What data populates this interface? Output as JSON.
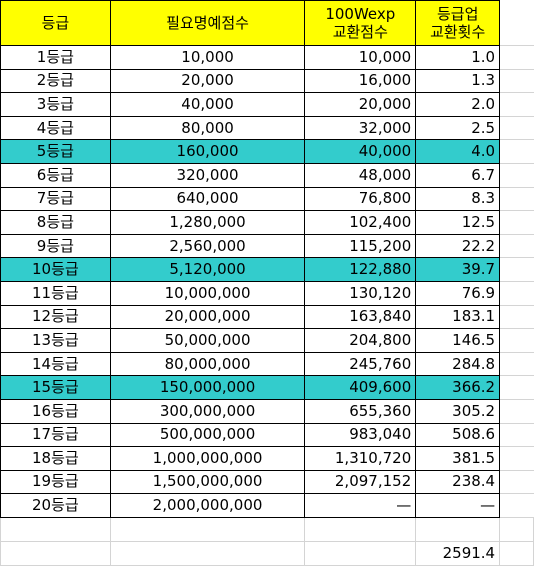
{
  "headers": {
    "grade": "등급",
    "required_points": "필요명예점수",
    "exchange_line1": "100Wexp",
    "exchange_line2": "교환점수",
    "count_line1": "등급업",
    "count_line2": "교환횟수"
  },
  "rows": [
    {
      "grade": "1등급",
      "required": "10,000",
      "exchange": "10,000",
      "count": "1.0",
      "highlight": false
    },
    {
      "grade": "2등급",
      "required": "20,000",
      "exchange": "16,000",
      "count": "1.3",
      "highlight": false
    },
    {
      "grade": "3등급",
      "required": "40,000",
      "exchange": "20,000",
      "count": "2.0",
      "highlight": false
    },
    {
      "grade": "4등급",
      "required": "80,000",
      "exchange": "32,000",
      "count": "2.5",
      "highlight": false
    },
    {
      "grade": "5등급",
      "required": "160,000",
      "exchange": "40,000",
      "count": "4.0",
      "highlight": true
    },
    {
      "grade": "6등급",
      "required": "320,000",
      "exchange": "48,000",
      "count": "6.7",
      "highlight": false
    },
    {
      "grade": "7등급",
      "required": "640,000",
      "exchange": "76,800",
      "count": "8.3",
      "highlight": false
    },
    {
      "grade": "8등급",
      "required": "1,280,000",
      "exchange": "102,400",
      "count": "12.5",
      "highlight": false
    },
    {
      "grade": "9등급",
      "required": "2,560,000",
      "exchange": "115,200",
      "count": "22.2",
      "highlight": false
    },
    {
      "grade": "10등급",
      "required": "5,120,000",
      "exchange": "122,880",
      "count": "39.7",
      "highlight": true
    },
    {
      "grade": "11등급",
      "required": "10,000,000",
      "exchange": "130,120",
      "count": "76.9",
      "highlight": false
    },
    {
      "grade": "12등급",
      "required": "20,000,000",
      "exchange": "163,840",
      "count": "183.1",
      "highlight": false
    },
    {
      "grade": "13등급",
      "required": "50,000,000",
      "exchange": "204,800",
      "count": "146.5",
      "highlight": false
    },
    {
      "grade": "14등급",
      "required": "80,000,000",
      "exchange": "245,760",
      "count": "284.8",
      "highlight": false
    },
    {
      "grade": "15등급",
      "required": "150,000,000",
      "exchange": "409,600",
      "count": "366.2",
      "highlight": true
    },
    {
      "grade": "16등급",
      "required": "300,000,000",
      "exchange": "655,360",
      "count": "305.2",
      "highlight": false
    },
    {
      "grade": "17등급",
      "required": "500,000,000",
      "exchange": "983,040",
      "count": "508.6",
      "highlight": false
    },
    {
      "grade": "18등급",
      "required": "1,000,000,000",
      "exchange": "1,310,720",
      "count": "381.5",
      "highlight": false
    },
    {
      "grade": "19등급",
      "required": "1,500,000,000",
      "exchange": "2,097,152",
      "count": "238.4",
      "highlight": false
    },
    {
      "grade": "20등급",
      "required": "2,000,000,000",
      "exchange": "—",
      "count": "—",
      "highlight": false
    }
  ],
  "total": "2591.4",
  "colors": {
    "header_bg": "#ffff00",
    "highlight_bg": "#33cccc"
  }
}
